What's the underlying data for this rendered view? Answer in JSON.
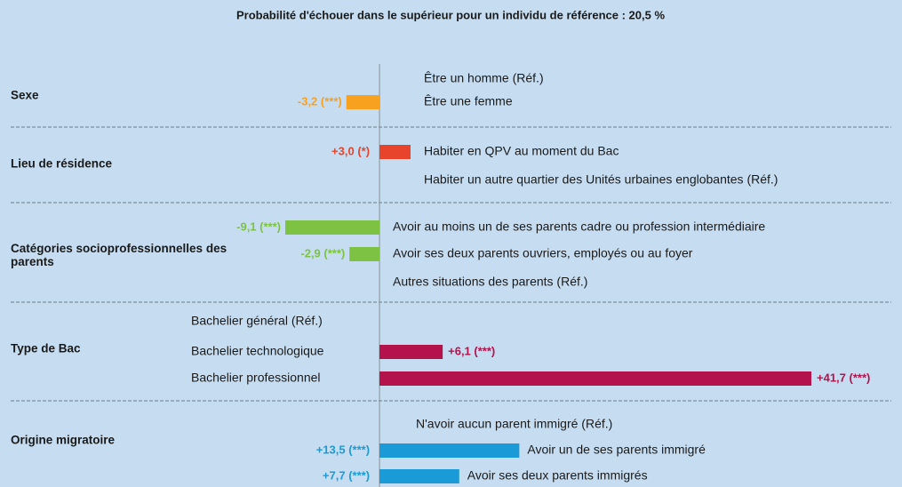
{
  "chart_data": {
    "type": "bar",
    "orientation": "horizontal",
    "title": "Probabilité d'échouer dans le supérieur pour un individu de référence : 20,5 %",
    "groups": [
      {
        "name": "Sexe",
        "color": "#f7a11e",
        "categories": [
          "Être un homme (Réf.)",
          "Être une femme"
        ],
        "values": [
          null,
          -3.2
        ],
        "value_labels": [
          null,
          "-3,2 (***)"
        ]
      },
      {
        "name": "Lieu de résidence",
        "color": "#e8432b",
        "categories": [
          "Habiter en QPV au moment du Bac",
          "Habiter un autre quartier des  Unités urbaines englobantes (Réf.)"
        ],
        "values": [
          3.0,
          null
        ],
        "value_labels": [
          "+3,0 (*)",
          null
        ]
      },
      {
        "name": "Catégories socioprofessionnelles des parents",
        "color": "#7dc243",
        "categories": [
          "Avoir au moins un de ses parents cadre ou profession intermédiaire",
          "Avoir ses deux parents ouvriers, employés ou au foyer",
          "Autres situations des parents (Réf.)"
        ],
        "values": [
          -9.1,
          -2.9,
          null
        ],
        "value_labels": [
          "-9,1 (***)",
          "-2,9 (***)",
          null
        ]
      },
      {
        "name": "Type de Bac",
        "color": "#b3124b",
        "categories": [
          "Bachelier général (Réf.)",
          "Bachelier technologique",
          "Bachelier professionnel"
        ],
        "values": [
          null,
          6.1,
          41.7
        ],
        "value_labels": [
          null,
          "+6,1 (***)",
          "+41,7 (***)"
        ]
      },
      {
        "name": "Origine migratoire",
        "color": "#1b9ad8",
        "categories": [
          "N'avoir aucun parent immigré (Réf.)",
          "Avoir un de ses parents immigré",
          "Avoir ses deux parents immigrés"
        ],
        "values": [
          null,
          13.5,
          7.7
        ],
        "value_labels": [
          null,
          "+13,5 (***)",
          "+7,7 (***)"
        ]
      }
    ]
  }
}
